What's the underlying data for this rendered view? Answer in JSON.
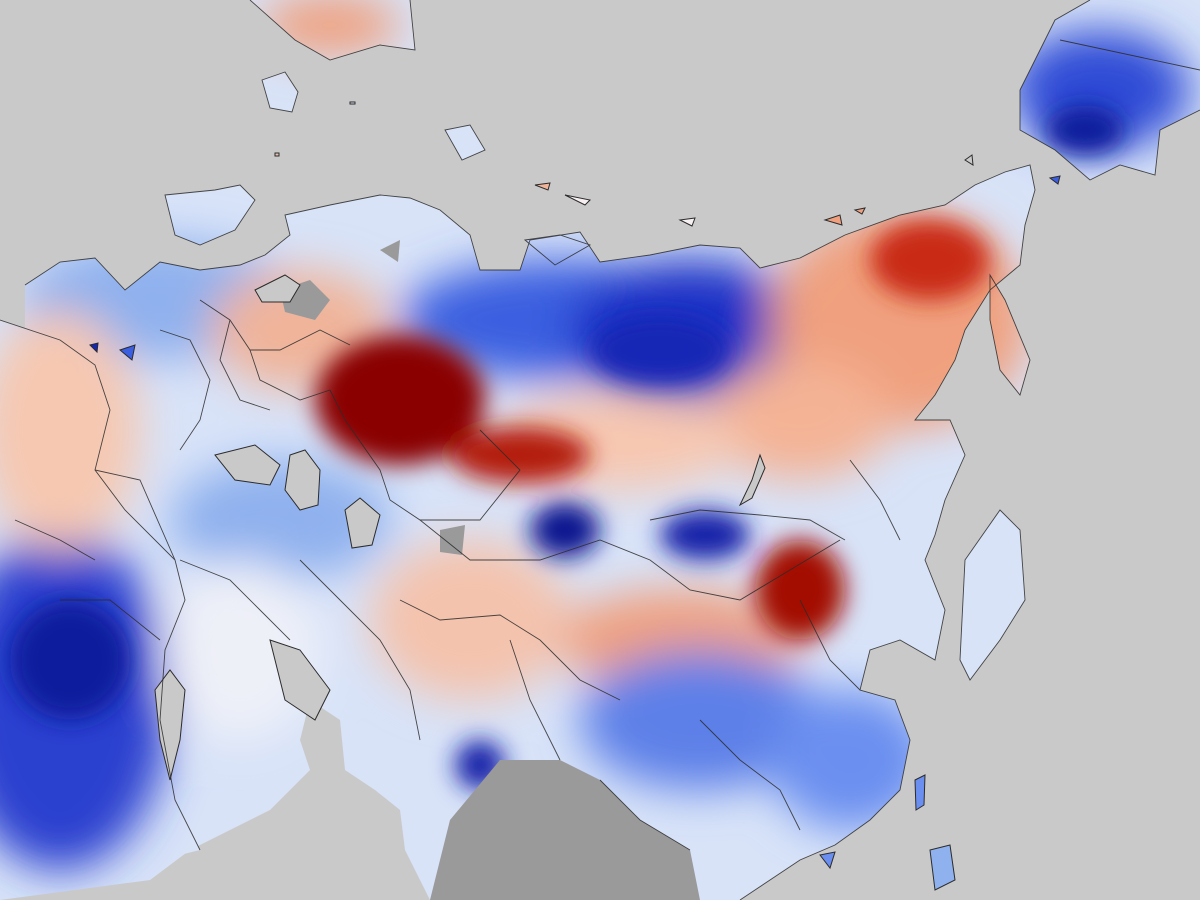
{
  "map": {
    "type": "temperature-anomaly-map",
    "colors": {
      "ocean": "#c9c9c9",
      "no_data": "#9a9a9a",
      "border": "#2b2b2b",
      "very_warm": "#7a0000",
      "warm": "#d83a1c",
      "slightly_warm": "#f4a07c",
      "neutral": "#f2f2f7",
      "slightly_cool": "#a9c3f2",
      "cool": "#3b5fe0",
      "very_cool": "#0a1490"
    }
  }
}
